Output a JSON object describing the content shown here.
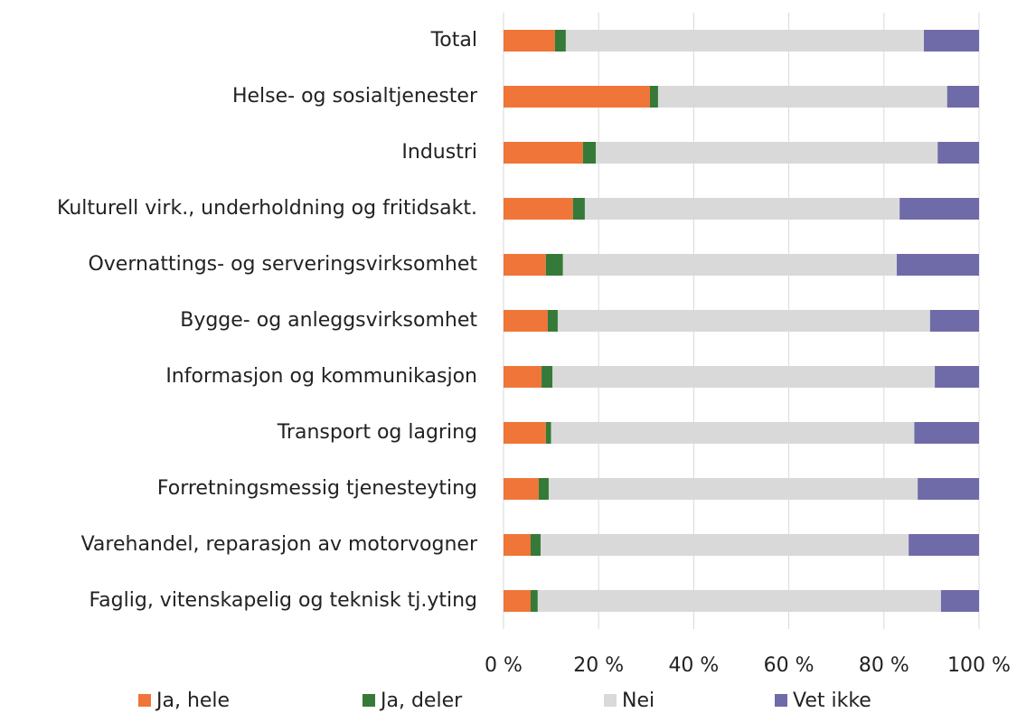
{
  "chart_data": {
    "type": "stacked_barh",
    "categories": [
      "Total",
      "Helse- og sosialtjenester",
      "Industri",
      "Kulturell virk., underholdning og fritidsakt.",
      "Overnattings- og serveringsvirksomhet",
      "Bygge- og anleggsvirksomhet",
      "Informasjon og kommunikasjon",
      "Transport og lagring",
      "Forretningsmessig tjenesteyting",
      "Varehandel, reparasjon av motorvogner",
      "Faglig, vitenskapelig og teknisk tj.yting"
    ],
    "series": [
      {
        "name": "Ja, hele",
        "color": "#f07538",
        "values": [
          10.8,
          30.8,
          16.7,
          14.6,
          8.9,
          9.3,
          8.0,
          8.9,
          7.4,
          5.7,
          5.7
        ]
      },
      {
        "name": "Ja, deler",
        "color": "#357a38",
        "values": [
          2.3,
          1.7,
          2.7,
          2.5,
          3.6,
          2.1,
          2.3,
          1.1,
          2.1,
          2.1,
          1.5
        ]
      },
      {
        "name": "Nei",
        "color": "#d9d9d9",
        "values": [
          75.3,
          60.8,
          71.9,
          66.2,
          70.2,
          78.3,
          80.4,
          76.4,
          77.6,
          77.4,
          84.8
        ]
      },
      {
        "name": "Vet ikke",
        "color": "#6f6ba8",
        "values": [
          11.6,
          6.7,
          8.7,
          16.7,
          17.3,
          10.3,
          9.3,
          13.6,
          12.9,
          14.8,
          8.0
        ]
      }
    ],
    "xlim": [
      0,
      100
    ],
    "xticks": [
      {
        "value": 0,
        "label": "0 %"
      },
      {
        "value": 20,
        "label": "20 %"
      },
      {
        "value": 40,
        "label": "40 %"
      },
      {
        "value": 60,
        "label": "60 %"
      },
      {
        "value": 80,
        "label": "80 %"
      },
      {
        "value": 100,
        "label": "100 %"
      }
    ],
    "grid": true,
    "legend": "bottom"
  }
}
